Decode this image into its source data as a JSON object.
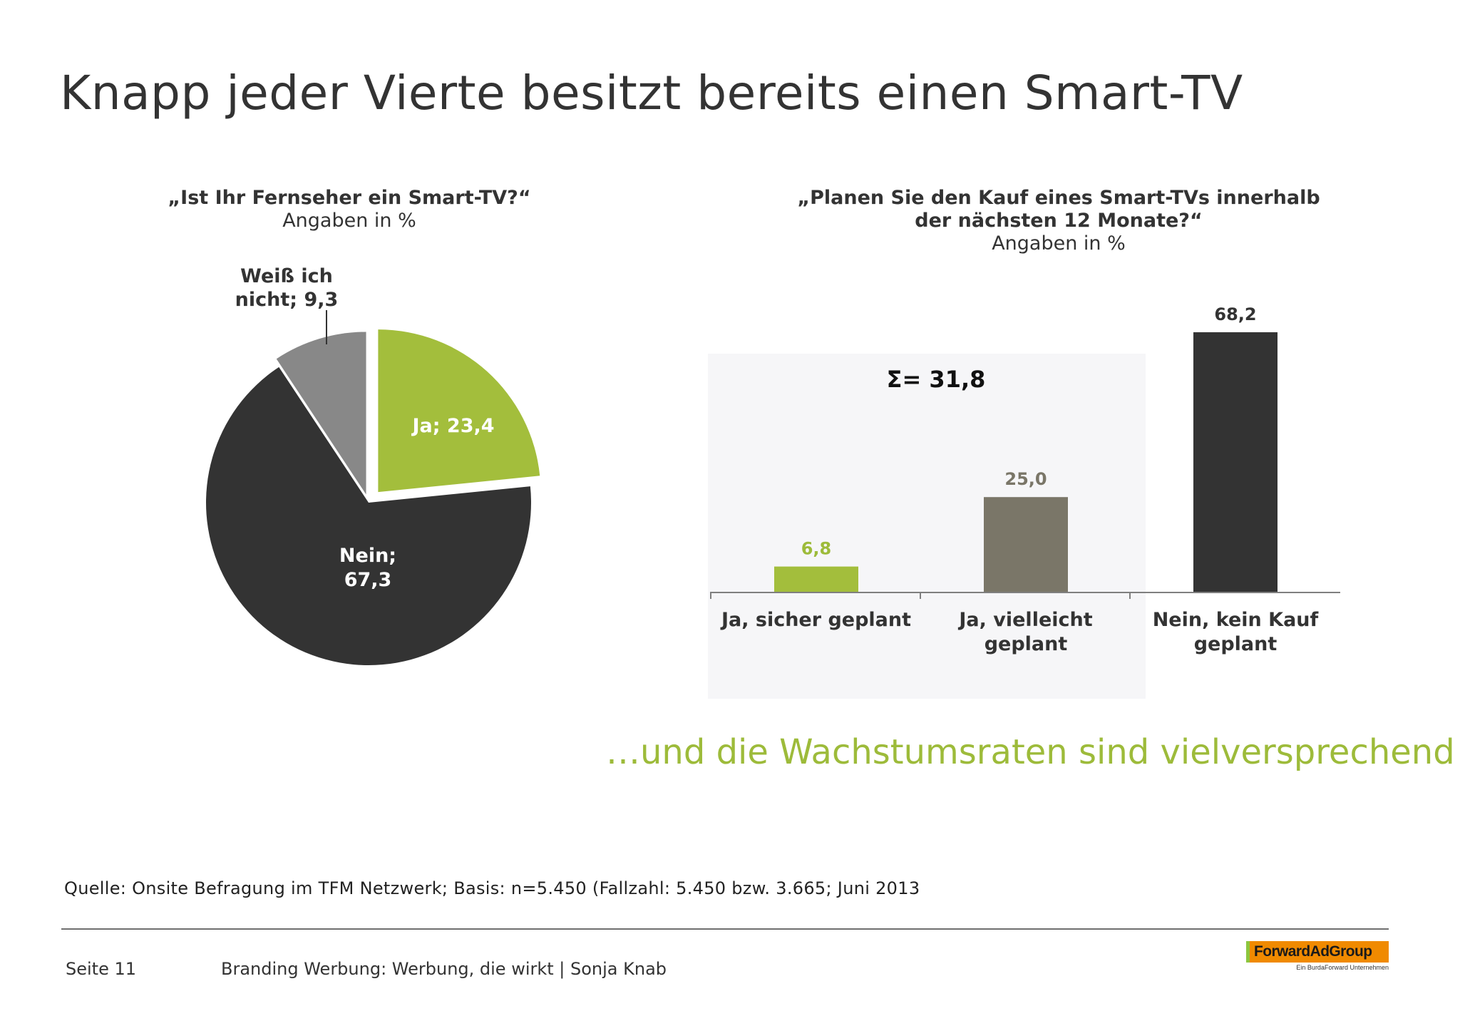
{
  "title": "Knapp jeder Vierte besitzt bereits einen Smart-TV",
  "subtitle": "…und die Wachstumsraten sind vielversprechend",
  "source": "Quelle: Onsite Befragung im TFM Netzwerk; Basis: n=5.450 (Fallzahl: 5.450  bzw. 3.665; Juni 2013",
  "footer": {
    "page": "Seite 11",
    "text": "Branding Werbung: Werbung, die wirkt | Sonja Knab",
    "logo": "ForwardAdGroup",
    "logo_tagline": "Ein BurdaForward Unternehmen"
  },
  "chart_data": [
    {
      "type": "pie",
      "title": "„Ist Ihr Fernseher ein Smart-TV?“",
      "subtitle": "Angaben in %",
      "slices": [
        {
          "label": "Ja",
          "value": 23.4,
          "display": "Ja; 23,4",
          "color": "#a3be3c"
        },
        {
          "label": "Nein",
          "value": 67.3,
          "display_lines": [
            "Nein;",
            "67,3"
          ],
          "color": "#333333"
        },
        {
          "label": "Weiß ich nicht",
          "value": 9.3,
          "display_lines": [
            "Weiß ich",
            "nicht; 9,3"
          ],
          "color": "#888888"
        }
      ]
    },
    {
      "type": "bar",
      "title_lines": [
        "„Planen Sie den Kauf eines Smart-TVs innerhalb",
        "der nächsten 12 Monate?“"
      ],
      "subtitle": "Angaben in %",
      "categories": [
        [
          "Ja, sicher geplant"
        ],
        [
          "Ja, vielleicht",
          "geplant"
        ],
        [
          "Nein, kein Kauf",
          "geplant"
        ]
      ],
      "values": [
        6.8,
        25.0,
        68.2
      ],
      "value_labels": [
        "6,8",
        "25,0",
        "68,2"
      ],
      "colors": [
        "#a3be3c",
        "#7a7668",
        "#333333"
      ],
      "label_colors": [
        "#9dbb3a",
        "#7a7668",
        "#333333"
      ],
      "annotation": "Σ= 31,8",
      "ylim": [
        0,
        68.2
      ]
    }
  ]
}
